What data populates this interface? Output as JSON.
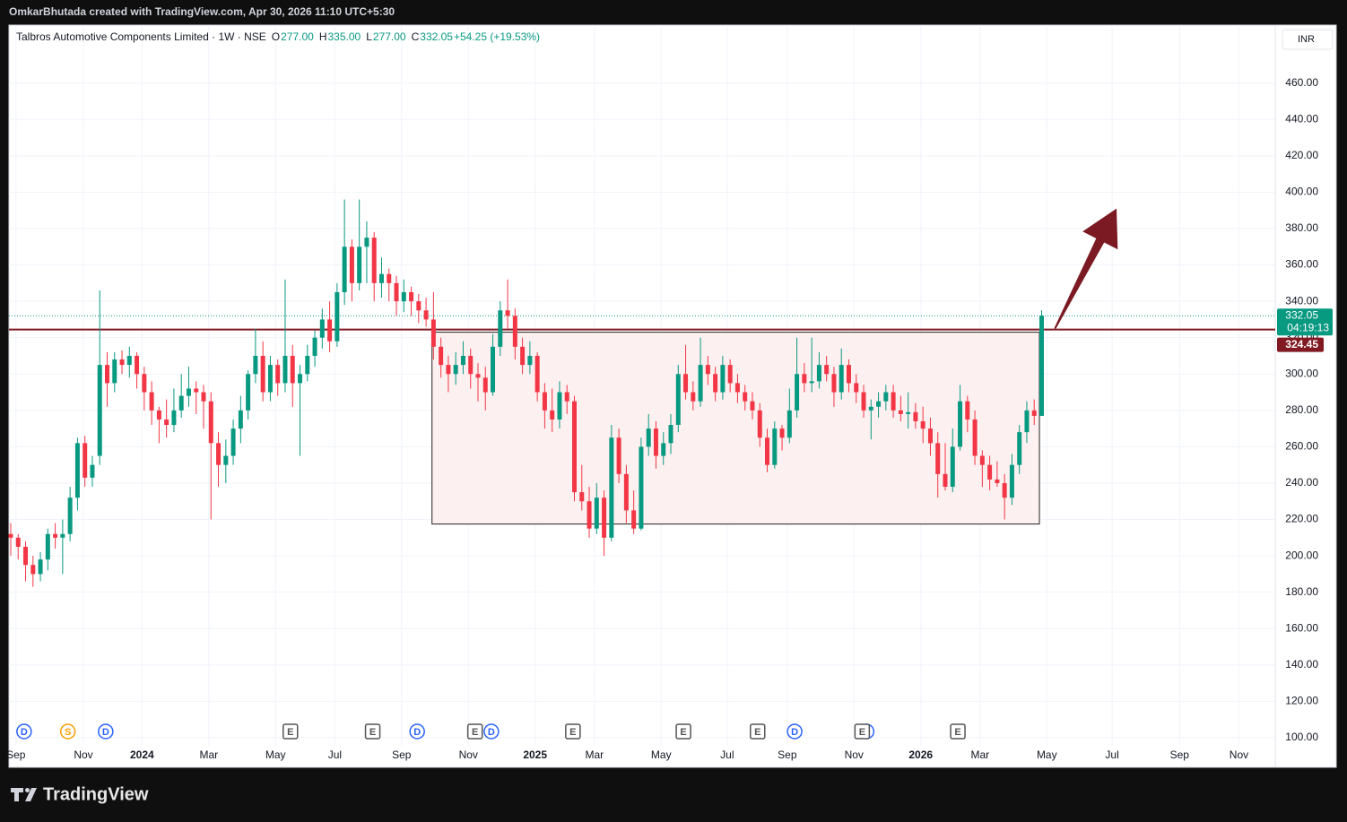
{
  "chart_data": {
    "type": "candlestick",
    "watermark": "OmkarBhutada created with TradingView.com, Apr 30, 2026 11:10 UTC+5:30",
    "title": "Talbros Automotive Components Limited · 1W · NSE",
    "legend": [
      "O",
      "277.00",
      "H",
      "335.00",
      "L",
      "277.00",
      "C",
      "332.05",
      "+54.25 (+19.53%)"
    ],
    "currency": "INR",
    "brand": "TradingView",
    "up_color": "#089981",
    "down_color": "#f23645",
    "grid": true,
    "xlim": [
      -0.24,
      170.5
    ],
    "xticks": [
      {
        "value": 0.7,
        "label": "Sep"
      },
      {
        "value": 9.8,
        "label": "Nov"
      },
      {
        "value": 17.7,
        "label": "2024"
      },
      {
        "value": 26.7,
        "label": "Mar"
      },
      {
        "value": 35.7,
        "label": "May"
      },
      {
        "value": 43.7,
        "label": "Jul"
      },
      {
        "value": 52.7,
        "label": "Sep"
      },
      {
        "value": 61.7,
        "label": "Nov"
      },
      {
        "value": 70.7,
        "label": "2025"
      },
      {
        "value": 78.7,
        "label": "Mar"
      },
      {
        "value": 87.7,
        "label": "May"
      },
      {
        "value": 96.6,
        "label": "Jul"
      },
      {
        "value": 104.7,
        "label": "Sep"
      },
      {
        "value": 113.7,
        "label": "Nov"
      },
      {
        "value": 122.7,
        "label": "2026"
      },
      {
        "value": 130.7,
        "label": "Mar"
      },
      {
        "value": 139.7,
        "label": "May"
      },
      {
        "value": 148.5,
        "label": "Jul"
      },
      {
        "value": 157.6,
        "label": "Sep"
      },
      {
        "value": 165.6,
        "label": "Nov"
      }
    ],
    "ylim": [
      83.7,
      491.9
    ],
    "yticks": [
      {
        "value": 100,
        "label": "100.00"
      },
      {
        "value": 120,
        "label": "120.00"
      },
      {
        "value": 140,
        "label": "140.00"
      },
      {
        "value": 160,
        "label": "160.00"
      },
      {
        "value": 180,
        "label": "180.00"
      },
      {
        "value": 200,
        "label": "200.00"
      },
      {
        "value": 220,
        "label": "220.00"
      },
      {
        "value": 240,
        "label": "240.00"
      },
      {
        "value": 260,
        "label": "260.00"
      },
      {
        "value": 280,
        "label": "280.00"
      },
      {
        "value": 300,
        "label": "300.00"
      },
      {
        "value": 320,
        "label": "320.00"
      },
      {
        "value": 340,
        "label": "340.00"
      },
      {
        "value": 360,
        "label": "360.00"
      },
      {
        "value": 380,
        "label": "380.00"
      },
      {
        "value": 400,
        "label": "400.00"
      },
      {
        "value": 420,
        "label": "420.00"
      },
      {
        "value": 440,
        "label": "440.00"
      },
      {
        "value": 460,
        "label": "460.00"
      }
    ],
    "candles": [
      [
        212,
        218,
        200,
        210
      ],
      [
        210,
        212,
        198,
        205
      ],
      [
        205,
        208,
        186,
        195
      ],
      [
        195,
        200,
        183,
        190
      ],
      [
        190,
        202,
        186,
        198
      ],
      [
        198,
        215,
        192,
        212
      ],
      [
        212,
        218,
        204,
        210
      ],
      [
        210,
        220,
        190,
        212
      ],
      [
        212,
        238,
        208,
        232
      ],
      [
        232,
        265,
        225,
        262
      ],
      [
        262,
        266,
        238,
        243
      ],
      [
        243,
        255,
        238,
        250
      ],
      [
        255,
        346,
        250,
        305
      ],
      [
        305,
        312,
        282,
        295
      ],
      [
        295,
        312,
        290,
        308
      ],
      [
        308,
        313,
        300,
        305
      ],
      [
        305,
        315,
        298,
        310
      ],
      [
        310,
        312,
        292,
        300
      ],
      [
        300,
        304,
        280,
        290
      ],
      [
        290,
        296,
        272,
        280
      ],
      [
        280,
        282,
        262,
        275
      ],
      [
        275,
        286,
        265,
        272
      ],
      [
        272,
        292,
        268,
        280
      ],
      [
        280,
        300,
        276,
        288
      ],
      [
        288,
        304,
        282,
        292
      ],
      [
        292,
        296,
        278,
        290
      ],
      [
        290,
        294,
        270,
        285
      ],
      [
        285,
        290,
        220,
        262
      ],
      [
        262,
        268,
        238,
        250
      ],
      [
        250,
        264,
        240,
        255
      ],
      [
        255,
        275,
        250,
        270
      ],
      [
        270,
        288,
        262,
        280
      ],
      [
        280,
        302,
        275,
        300
      ],
      [
        300,
        325,
        295,
        310
      ],
      [
        310,
        318,
        285,
        290
      ],
      [
        290,
        310,
        285,
        305
      ],
      [
        305,
        308,
        288,
        295
      ],
      [
        295,
        352,
        290,
        310
      ],
      [
        310,
        316,
        282,
        295
      ],
      [
        295,
        305,
        255,
        300
      ],
      [
        300,
        316,
        296,
        310
      ],
      [
        310,
        324,
        304,
        320
      ],
      [
        320,
        336,
        314,
        330
      ],
      [
        330,
        340,
        312,
        318
      ],
      [
        318,
        350,
        315,
        345
      ],
      [
        345,
        396,
        338,
        370
      ],
      [
        370,
        374,
        340,
        350
      ],
      [
        350,
        396,
        346,
        370
      ],
      [
        370,
        384,
        350,
        375
      ],
      [
        375,
        378,
        340,
        350
      ],
      [
        350,
        364,
        342,
        355
      ],
      [
        355,
        358,
        340,
        350
      ],
      [
        350,
        354,
        332,
        340
      ],
      [
        340,
        352,
        334,
        345
      ],
      [
        345,
        348,
        332,
        340
      ],
      [
        340,
        344,
        328,
        335
      ],
      [
        335,
        342,
        326,
        330
      ],
      [
        330,
        345,
        308,
        315
      ],
      [
        315,
        320,
        298,
        305
      ],
      [
        305,
        310,
        290,
        300
      ],
      [
        300,
        312,
        294,
        305
      ],
      [
        305,
        318,
        300,
        310
      ],
      [
        310,
        314,
        292,
        300
      ],
      [
        300,
        306,
        285,
        298
      ],
      [
        298,
        304,
        280,
        290
      ],
      [
        290,
        322,
        288,
        315
      ],
      [
        315,
        340,
        310,
        335
      ],
      [
        335,
        352,
        325,
        332
      ],
      [
        332,
        336,
        308,
        315
      ],
      [
        315,
        320,
        300,
        305
      ],
      [
        305,
        318,
        300,
        310
      ],
      [
        310,
        312,
        285,
        290
      ],
      [
        290,
        295,
        270,
        280
      ],
      [
        280,
        292,
        268,
        275
      ],
      [
        275,
        296,
        270,
        290
      ],
      [
        290,
        294,
        278,
        285
      ],
      [
        285,
        288,
        230,
        235
      ],
      [
        235,
        250,
        225,
        230
      ],
      [
        230,
        238,
        210,
        215
      ],
      [
        215,
        240,
        212,
        232
      ],
      [
        232,
        236,
        200,
        210
      ],
      [
        210,
        272,
        208,
        265
      ],
      [
        265,
        270,
        240,
        245
      ],
      [
        245,
        250,
        218,
        225
      ],
      [
        225,
        236,
        212,
        215
      ],
      [
        215,
        265,
        214,
        260
      ],
      [
        260,
        278,
        255,
        270
      ],
      [
        270,
        274,
        248,
        255
      ],
      [
        255,
        268,
        250,
        262
      ],
      [
        262,
        278,
        256,
        272
      ],
      [
        272,
        305,
        268,
        300
      ],
      [
        300,
        316,
        286,
        290
      ],
      [
        290,
        296,
        280,
        285
      ],
      [
        285,
        320,
        282,
        305
      ],
      [
        305,
        310,
        294,
        300
      ],
      [
        300,
        304,
        285,
        290
      ],
      [
        290,
        310,
        286,
        305
      ],
      [
        305,
        308,
        290,
        295
      ],
      [
        295,
        300,
        284,
        290
      ],
      [
        290,
        294,
        280,
        285
      ],
      [
        285,
        290,
        275,
        280
      ],
      [
        280,
        284,
        260,
        265
      ],
      [
        265,
        270,
        246,
        250
      ],
      [
        250,
        274,
        248,
        270
      ],
      [
        270,
        272,
        258,
        265
      ],
      [
        265,
        292,
        262,
        280
      ],
      [
        280,
        320,
        276,
        300
      ],
      [
        300,
        306,
        290,
        295
      ],
      [
        295,
        320,
        290,
        296
      ],
      [
        296,
        312,
        292,
        305
      ],
      [
        305,
        310,
        296,
        300
      ],
      [
        300,
        304,
        282,
        290
      ],
      [
        290,
        314,
        286,
        305
      ],
      [
        305,
        308,
        290,
        295
      ],
      [
        295,
        300,
        284,
        290
      ],
      [
        290,
        294,
        276,
        280
      ],
      [
        280,
        286,
        264,
        282
      ],
      [
        282,
        290,
        276,
        285
      ],
      [
        285,
        294,
        280,
        290
      ],
      [
        290,
        294,
        276,
        280
      ],
      [
        280,
        288,
        274,
        278
      ],
      [
        278,
        290,
        270,
        279
      ],
      [
        279,
        284,
        270,
        274
      ],
      [
        274,
        282,
        262,
        270
      ],
      [
        270,
        276,
        255,
        262
      ],
      [
        262,
        268,
        232,
        245
      ],
      [
        245,
        262,
        236,
        238
      ],
      [
        238,
        270,
        235,
        260
      ],
      [
        260,
        294,
        258,
        285
      ],
      [
        285,
        288,
        268,
        275
      ],
      [
        275,
        280,
        250,
        255
      ],
      [
        255,
        258,
        238,
        250
      ],
      [
        250,
        255,
        236,
        242
      ],
      [
        242,
        252,
        238,
        240
      ],
      [
        240,
        245,
        220,
        232
      ],
      [
        232,
        256,
        228,
        250
      ],
      [
        250,
        272,
        245,
        268
      ],
      [
        268,
        285,
        262,
        280
      ],
      [
        280,
        286,
        272,
        277
      ],
      [
        277,
        335,
        277,
        332.05
      ]
    ],
    "price_lines": [
      {
        "value": 332.05,
        "label": "332.05",
        "countdown": "04:19:13",
        "color": "#089981",
        "style": "dotted"
      },
      {
        "value": 324.45,
        "label": "324.45",
        "color": "#801922",
        "style": "solid"
      }
    ],
    "range_box": {
      "x": [
        56.8,
        138.7
      ],
      "y": [
        217.5,
        323
      ],
      "fill": "#fdf0f0",
      "stroke": "#222222"
    },
    "arrow": {
      "x": [
        140.8,
        149.1
      ],
      "y": [
        325,
        391
      ],
      "color": "#7b1a22"
    },
    "events": [
      {
        "x": 1.8,
        "label": "D",
        "color": "#2962ff"
      },
      {
        "x": 7.7,
        "label": "S",
        "color": "#f59f00"
      },
      {
        "x": 12.8,
        "label": "D",
        "color": "#2962ff"
      },
      {
        "x": 37.7,
        "label": "E",
        "color": "#555555"
      },
      {
        "x": 48.8,
        "label": "E",
        "color": "#555555"
      },
      {
        "x": 54.8,
        "label": "D",
        "color": "#2962ff"
      },
      {
        "x": 62.6,
        "label": "E",
        "color": "#555555"
      },
      {
        "x": 64.8,
        "label": "D",
        "color": "#2962ff"
      },
      {
        "x": 75.8,
        "label": "E",
        "color": "#555555"
      },
      {
        "x": 90.7,
        "label": "E",
        "color": "#555555"
      },
      {
        "x": 100.7,
        "label": "E",
        "color": "#555555"
      },
      {
        "x": 105.7,
        "label": "D",
        "color": "#2962ff"
      },
      {
        "x": 115.4,
        "label": "D",
        "color": "#2962ff"
      },
      {
        "x": 114.8,
        "label": "E",
        "color": "#555555"
      },
      {
        "x": 127.7,
        "label": "E",
        "color": "#555555"
      }
    ]
  }
}
